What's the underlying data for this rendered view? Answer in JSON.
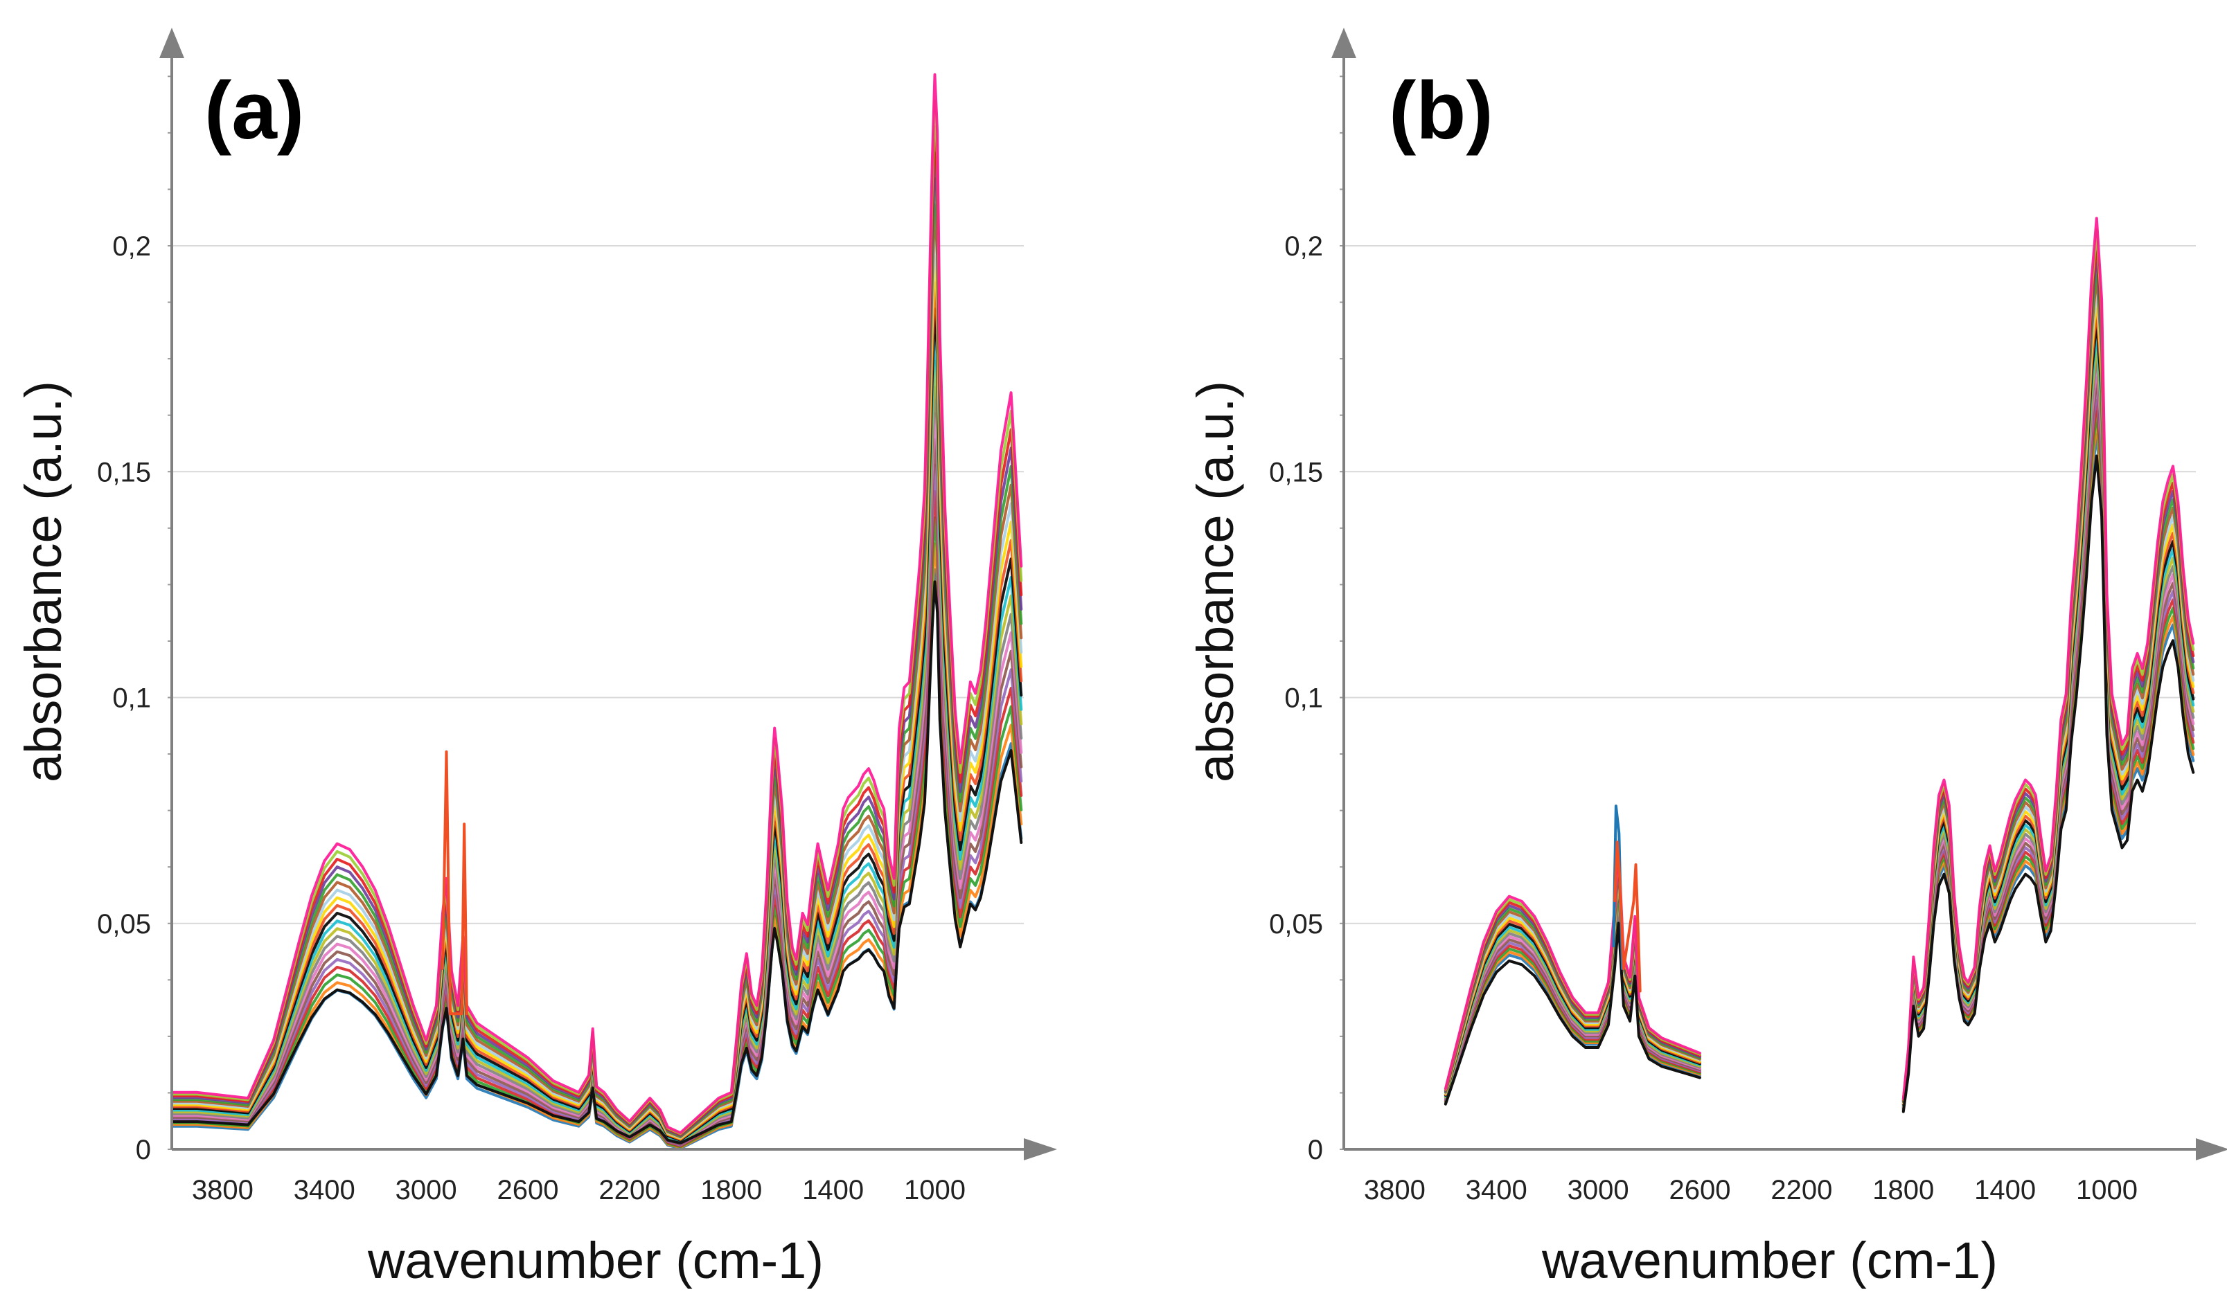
{
  "chart_data": [
    {
      "type": "line",
      "panel_label": "(a)",
      "xlabel": "wavenumber (cm-1)",
      "ylabel": "absorbance (a.u.)",
      "xlim": [
        4000,
        650
      ],
      "ylim": [
        0,
        0.25
      ],
      "x_ticks": [
        3800,
        3400,
        3000,
        2600,
        2200,
        1800,
        1400,
        1000
      ],
      "x_tick_labels": [
        "3800",
        "3400",
        "3000",
        "2600",
        "2200",
        "1800",
        "1400",
        "1000"
      ],
      "y_ticks": [
        0,
        0.05,
        0.1,
        0.15,
        0.2
      ],
      "y_tick_labels": [
        "0",
        "0,05",
        "0,1",
        "0,15",
        "0,2"
      ],
      "grid": "horizontal",
      "series_count": 20,
      "scale_range": [
        0.7,
        1.28
      ],
      "base_spectrum": {
        "x": [
          4000,
          3900,
          3800,
          3700,
          3600,
          3500,
          3450,
          3400,
          3350,
          3300,
          3250,
          3200,
          3150,
          3100,
          3050,
          3000,
          2960,
          2935,
          2920,
          2900,
          2875,
          2855,
          2840,
          2800,
          2700,
          2600,
          2500,
          2400,
          2360,
          2345,
          2330,
          2300,
          2250,
          2200,
          2160,
          2120,
          2080,
          2050,
          2000,
          1950,
          1900,
          1850,
          1800,
          1780,
          1760,
          1740,
          1720,
          1700,
          1680,
          1660,
          1640,
          1630,
          1620,
          1600,
          1580,
          1560,
          1545,
          1520,
          1500,
          1480,
          1460,
          1440,
          1420,
          1400,
          1380,
          1360,
          1340,
          1320,
          1300,
          1280,
          1260,
          1240,
          1220,
          1200,
          1180,
          1160,
          1150,
          1140,
          1120,
          1100,
          1080,
          1060,
          1040,
          1030,
          1020,
          1010,
          1000,
          990,
          980,
          960,
          940,
          920,
          900,
          880,
          860,
          840,
          820,
          800,
          780,
          760,
          740,
          720,
          700,
          680,
          660
        ],
        "y": [
          0.009,
          0.009,
          0.0085,
          0.008,
          0.018,
          0.035,
          0.043,
          0.049,
          0.052,
          0.051,
          0.048,
          0.044,
          0.038,
          0.031,
          0.024,
          0.018,
          0.024,
          0.04,
          0.046,
          0.03,
          0.024,
          0.036,
          0.024,
          0.021,
          0.018,
          0.015,
          0.011,
          0.009,
          0.012,
          0.02,
          0.01,
          0.009,
          0.006,
          0.004,
          0.006,
          0.008,
          0.006,
          0.003,
          0.002,
          0.004,
          0.006,
          0.008,
          0.009,
          0.018,
          0.028,
          0.033,
          0.026,
          0.024,
          0.03,
          0.045,
          0.065,
          0.072,
          0.068,
          0.058,
          0.042,
          0.034,
          0.032,
          0.04,
          0.038,
          0.046,
          0.052,
          0.048,
          0.044,
          0.048,
          0.052,
          0.058,
          0.06,
          0.061,
          0.062,
          0.064,
          0.065,
          0.063,
          0.06,
          0.058,
          0.05,
          0.046,
          0.06,
          0.072,
          0.079,
          0.08,
          0.09,
          0.1,
          0.113,
          0.13,
          0.15,
          0.17,
          0.185,
          0.175,
          0.14,
          0.11,
          0.092,
          0.075,
          0.066,
          0.073,
          0.08,
          0.078,
          0.082,
          0.09,
          0.1,
          0.11,
          0.12,
          0.125,
          0.13,
          0.115,
          0.1
        ]
      },
      "spike_series": [
        {
          "name": "orange",
          "color": "#f04e23",
          "x": [
            2935,
            2920,
            2905,
            2860,
            2850,
            2840
          ],
          "y": [
            0.04,
            0.088,
            0.03,
            0.03,
            0.072,
            0.03
          ]
        }
      ]
    },
    {
      "type": "line",
      "panel_label": "(b)",
      "xlabel": "wavenumber (cm-1)",
      "ylabel": "absorbance (a.u.)",
      "xlim": [
        4000,
        650
      ],
      "ylim": [
        0,
        0.25
      ],
      "x_ticks": [
        3800,
        3400,
        3000,
        2600,
        2200,
        1800,
        1400,
        1000
      ],
      "x_tick_labels": [
        "3800",
        "3400",
        "3000",
        "2600",
        "2200",
        "1800",
        "1400",
        "1000"
      ],
      "y_ticks": [
        0,
        0.05,
        0.1,
        0.15,
        0.2
      ],
      "y_tick_labels": [
        "0",
        "0,05",
        "0,1",
        "0,15",
        "0,2"
      ],
      "grid": "horizontal",
      "series_count": 20,
      "scale_range": [
        0.86,
        1.12
      ],
      "segments": [
        {
          "x": [
            3600,
            3550,
            3500,
            3450,
            3400,
            3350,
            3300,
            3250,
            3200,
            3150,
            3100,
            3050,
            3000,
            2960,
            2935,
            2920,
            2900,
            2875,
            2855,
            2840,
            2800,
            2750,
            2700,
            2650,
            2600
          ],
          "y": [
            0.012,
            0.022,
            0.032,
            0.041,
            0.047,
            0.05,
            0.049,
            0.046,
            0.041,
            0.035,
            0.03,
            0.027,
            0.027,
            0.033,
            0.048,
            0.06,
            0.038,
            0.034,
            0.046,
            0.03,
            0.024,
            0.022,
            0.021,
            0.02,
            0.019
          ]
        },
        {
          "x": [
            1800,
            1780,
            1760,
            1740,
            1720,
            1700,
            1680,
            1660,
            1640,
            1620,
            1600,
            1580,
            1560,
            1545,
            1520,
            1500,
            1480,
            1460,
            1440,
            1420,
            1400,
            1380,
            1360,
            1340,
            1320,
            1300,
            1280,
            1260,
            1240,
            1220,
            1200,
            1180,
            1160,
            1140,
            1120,
            1100,
            1080,
            1060,
            1040,
            1020,
            1010,
            1000,
            990,
            980,
            960,
            940,
            920,
            900,
            880,
            860,
            840,
            820,
            800,
            780,
            760,
            740,
            720,
            700,
            680,
            660
          ],
          "y": [
            0.01,
            0.02,
            0.038,
            0.03,
            0.032,
            0.045,
            0.06,
            0.07,
            0.073,
            0.068,
            0.05,
            0.04,
            0.034,
            0.033,
            0.036,
            0.048,
            0.056,
            0.06,
            0.055,
            0.058,
            0.062,
            0.066,
            0.069,
            0.071,
            0.073,
            0.072,
            0.07,
            0.062,
            0.055,
            0.058,
            0.07,
            0.085,
            0.09,
            0.108,
            0.12,
            0.135,
            0.152,
            0.172,
            0.184,
            0.168,
            0.14,
            0.11,
            0.1,
            0.09,
            0.085,
            0.08,
            0.082,
            0.095,
            0.098,
            0.095,
            0.1,
            0.11,
            0.12,
            0.128,
            0.132,
            0.135,
            0.128,
            0.115,
            0.105,
            0.1
          ]
        }
      ],
      "spike_series": [
        {
          "name": "blue",
          "color": "#1f77b4",
          "x": [
            2940,
            2930,
            2918,
            2905
          ],
          "y": [
            0.045,
            0.076,
            0.07,
            0.04
          ]
        },
        {
          "name": "orange",
          "color": "#f04e23",
          "x": [
            2935,
            2925,
            2915,
            2900,
            2860,
            2852,
            2845,
            2835
          ],
          "y": [
            0.055,
            0.068,
            0.06,
            0.04,
            0.055,
            0.063,
            0.052,
            0.035
          ]
        }
      ]
    }
  ],
  "palette": [
    "#1f77b4",
    "#ff7f0e",
    "#2ca02c",
    "#d62728",
    "#9467bd",
    "#8c564b",
    "#e377c2",
    "#7f7f7f",
    "#bcbd22",
    "#17becf",
    "#000000",
    "#f04e23",
    "#ffd700",
    "#a6cee3",
    "#b15928",
    "#33a02c",
    "#6a3d9a",
    "#e31a1c",
    "#9acd32",
    "#ff1493"
  ]
}
